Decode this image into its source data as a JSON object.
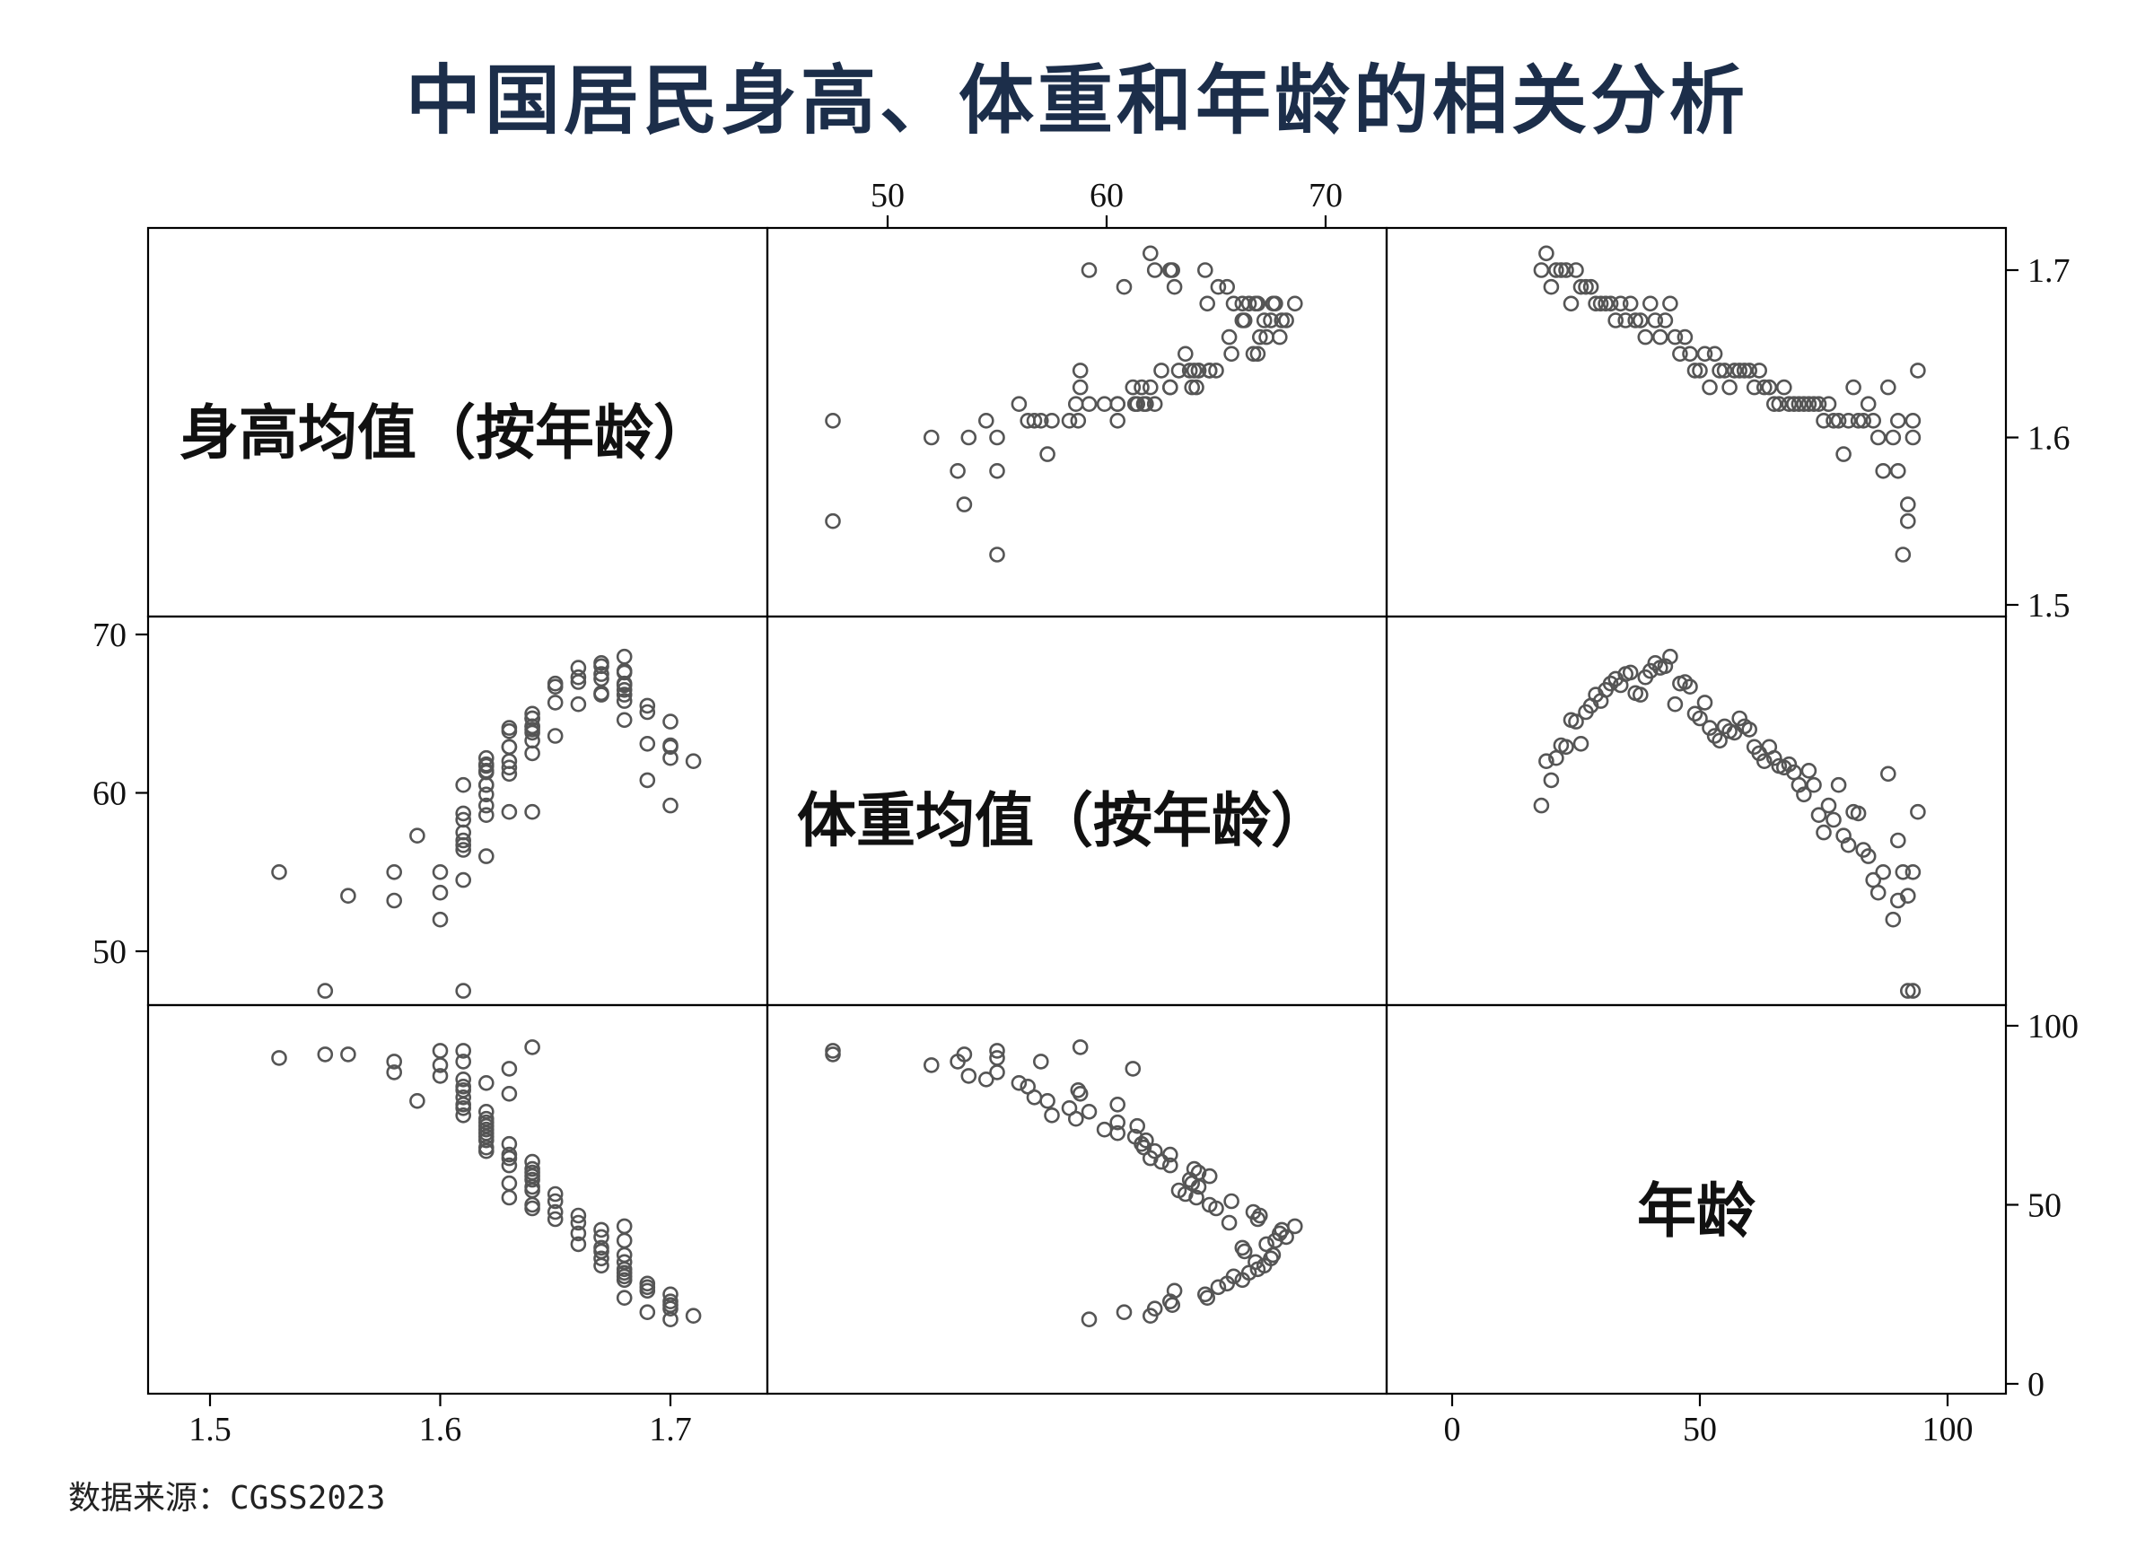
{
  "title": "中国居民身高、体重和年龄的相关分析",
  "source": "数据来源：CGSS2023",
  "chart_data": {
    "type": "scatter-matrix",
    "variables": [
      {
        "key": "height",
        "label": "身高均值（按年龄）",
        "range": [
          1.5,
          1.72
        ],
        "ticks": [
          1.5,
          1.6,
          1.7
        ],
        "tick_labels": [
          "1.5",
          "1.6",
          "1.7"
        ]
      },
      {
        "key": "weight",
        "label": "体重均值（按年龄）",
        "range": [
          47.5,
          70
        ],
        "ticks": [
          50,
          60,
          70
        ],
        "tick_labels": [
          "50",
          "60",
          "70"
        ]
      },
      {
        "key": "age",
        "label": "年龄",
        "range": [
          0,
          100
        ],
        "ticks": [
          0,
          50,
          100
        ],
        "tick_labels": [
          "0",
          "50",
          "100"
        ]
      }
    ],
    "columns": [
      "height",
      "weight",
      "age"
    ],
    "rows": [
      [
        1.7,
        59.2,
        18
      ],
      [
        1.71,
        62.0,
        19
      ],
      [
        1.69,
        60.8,
        20
      ],
      [
        1.7,
        62.2,
        21
      ],
      [
        1.7,
        63.0,
        22
      ],
      [
        1.7,
        62.9,
        23
      ],
      [
        1.68,
        64.6,
        24
      ],
      [
        1.7,
        64.5,
        25
      ],
      [
        1.69,
        63.1,
        26
      ],
      [
        1.69,
        65.1,
        27
      ],
      [
        1.69,
        65.5,
        28
      ],
      [
        1.68,
        66.2,
        29
      ],
      [
        1.68,
        65.8,
        30
      ],
      [
        1.68,
        66.5,
        31
      ],
      [
        1.68,
        66.9,
        32
      ],
      [
        1.67,
        67.2,
        33
      ],
      [
        1.68,
        66.8,
        34
      ],
      [
        1.67,
        67.5,
        35
      ],
      [
        1.68,
        67.6,
        36
      ],
      [
        1.67,
        66.3,
        37
      ],
      [
        1.67,
        66.2,
        38
      ],
      [
        1.66,
        67.3,
        39
      ],
      [
        1.68,
        67.7,
        40
      ],
      [
        1.67,
        68.2,
        41
      ],
      [
        1.66,
        67.9,
        42
      ],
      [
        1.67,
        68.0,
        43
      ],
      [
        1.68,
        68.6,
        44
      ],
      [
        1.66,
        65.6,
        45
      ],
      [
        1.65,
        66.9,
        46
      ],
      [
        1.66,
        67.0,
        47
      ],
      [
        1.65,
        66.7,
        48
      ],
      [
        1.64,
        65.0,
        49
      ],
      [
        1.64,
        64.7,
        50
      ],
      [
        1.65,
        65.7,
        51
      ],
      [
        1.63,
        64.1,
        52
      ],
      [
        1.65,
        63.6,
        53
      ],
      [
        1.64,
        63.3,
        54
      ],
      [
        1.64,
        64.2,
        55
      ],
      [
        1.63,
        63.9,
        56
      ],
      [
        1.64,
        63.8,
        57
      ],
      [
        1.64,
        64.7,
        58
      ],
      [
        1.64,
        64.2,
        59
      ],
      [
        1.64,
        64.0,
        60
      ],
      [
        1.63,
        62.9,
        61
      ],
      [
        1.64,
        62.5,
        62
      ],
      [
        1.63,
        62.0,
        63
      ],
      [
        1.63,
        62.9,
        64
      ],
      [
        1.62,
        62.2,
        65
      ],
      [
        1.62,
        61.7,
        66
      ],
      [
        1.63,
        61.6,
        67
      ],
      [
        1.62,
        61.8,
        68
      ],
      [
        1.62,
        61.3,
        69
      ],
      [
        1.62,
        60.5,
        70
      ],
      [
        1.62,
        59.9,
        71
      ],
      [
        1.62,
        61.4,
        72
      ],
      [
        1.62,
        60.5,
        73
      ],
      [
        1.62,
        58.6,
        74
      ],
      [
        1.61,
        57.5,
        75
      ],
      [
        1.62,
        59.2,
        76
      ],
      [
        1.61,
        58.3,
        77
      ],
      [
        1.61,
        60.5,
        78
      ],
      [
        1.59,
        57.3,
        79
      ],
      [
        1.61,
        56.7,
        80
      ],
      [
        1.63,
        58.8,
        81
      ],
      [
        1.61,
        58.7,
        82
      ],
      [
        1.61,
        56.4,
        83
      ],
      [
        1.62,
        56.0,
        84
      ],
      [
        1.61,
        54.5,
        85
      ],
      [
        1.6,
        53.7,
        86
      ],
      [
        1.58,
        55.0,
        87
      ],
      [
        1.63,
        61.2,
        88
      ],
      [
        1.6,
        52.0,
        89
      ],
      [
        1.58,
        53.2,
        90
      ],
      [
        1.61,
        57.0,
        90
      ],
      [
        1.53,
        55.0,
        91
      ],
      [
        1.55,
        47.5,
        92
      ],
      [
        1.61,
        47.5,
        93
      ],
      [
        1.6,
        55.0,
        93
      ],
      [
        1.56,
        53.5,
        92
      ],
      [
        1.64,
        58.8,
        94
      ]
    ]
  }
}
